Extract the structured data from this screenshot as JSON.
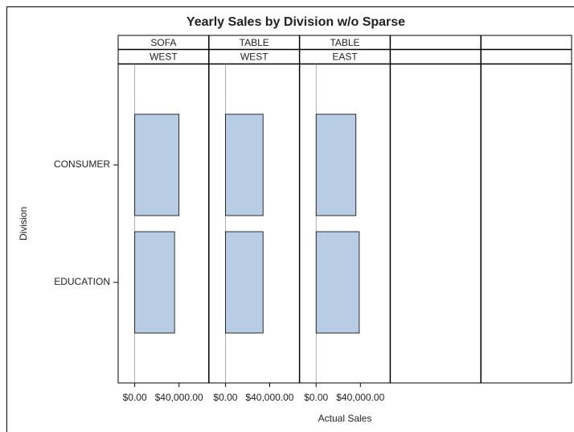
{
  "chart_data": {
    "type": "bar",
    "orientation": "horizontal",
    "title": "Yearly Sales by Division w/o Sparse",
    "x_label": "Actual Sales",
    "y_label": "Division",
    "categories": [
      "CONSUMER",
      "EDUCATION"
    ],
    "color": "#b8cce4",
    "xlim": [
      -15000,
      67000
    ],
    "xticks": [
      {
        "value": 0,
        "label": "$0.00"
      },
      {
        "value": 40000,
        "label": "$40,000.00"
      }
    ],
    "panels": [
      {
        "product": "SOFA",
        "region": "WEST",
        "values": [
          40000,
          36000
        ]
      },
      {
        "product": "TABLE",
        "region": "WEST",
        "values": [
          34000,
          34000
        ]
      },
      {
        "product": "TABLE",
        "region": "EAST",
        "values": [
          36000,
          39000
        ]
      }
    ]
  }
}
